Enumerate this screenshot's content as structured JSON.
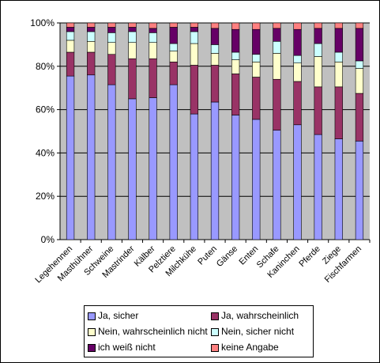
{
  "chart_data": {
    "type": "bar",
    "stacked": true,
    "percent": true,
    "title": "",
    "xlabel": "",
    "ylabel": "",
    "ylim": [
      0,
      100
    ],
    "yticks": [
      "0%",
      "20%",
      "40%",
      "60%",
      "80%",
      "100%"
    ],
    "grid": true,
    "legend_position": "bottom",
    "categories": [
      "Legehennen",
      "Masthühner",
      "Schweine",
      "Mastrinder",
      "Kälber",
      "Pelztiere",
      "Milchkühe",
      "Puten",
      "Gänse",
      "Enten",
      "Schafe",
      "Kaninchen",
      "Pferde",
      "Ziege",
      "Fischfarmen"
    ],
    "series": [
      {
        "name": "Ja, sicher",
        "color": "#9999ff",
        "values": [
          75.5,
          76,
          71.5,
          65,
          65.5,
          71.5,
          58,
          63.5,
          57.5,
          55.5,
          50.5,
          53,
          48.5,
          46.5,
          45.5
        ]
      },
      {
        "name": "Ja, wahrscheinlich",
        "color": "#993366",
        "values": [
          11,
          10.5,
          14,
          18.5,
          18,
          10.5,
          22.5,
          17,
          19,
          19.5,
          23.5,
          20,
          22,
          24,
          22
        ]
      },
      {
        "name": "Nein, wahrscheinlich nicht",
        "color": "#ffffcc",
        "values": [
          5.5,
          5,
          5.5,
          7.5,
          7.5,
          5,
          10,
          5.5,
          6.5,
          7,
          12,
          8.5,
          14,
          11.5,
          11.5
        ]
      },
      {
        "name": "Nein, sicher nicht",
        "color": "#ccffff",
        "values": [
          4,
          4.5,
          4.5,
          5,
          4.5,
          3.5,
          5.5,
          4,
          3.5,
          3.5,
          5.5,
          3.5,
          6,
          4.5,
          3.5
        ]
      },
      {
        "name": "ich weiß nicht",
        "color": "#660066",
        "values": [
          2,
          2,
          2.5,
          2,
          2,
          7.5,
          2,
          7.5,
          10.5,
          11.5,
          6,
          12,
          7,
          11,
          15
        ]
      },
      {
        "name": "keine Angabe",
        "color": "#ff8080",
        "values": [
          2,
          2,
          2,
          2,
          2.5,
          2,
          2,
          2.5,
          3,
          3,
          2.5,
          3,
          2.5,
          2.5,
          2.5
        ]
      }
    ]
  }
}
